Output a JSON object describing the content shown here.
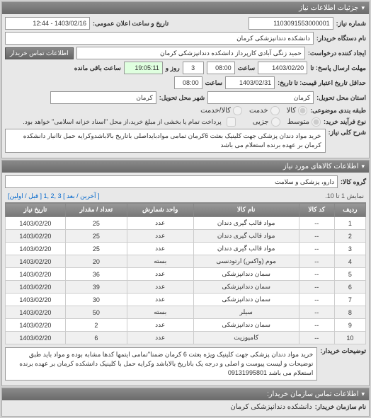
{
  "panel1": {
    "title": "جزئیات اطلاعات نیاز",
    "request_no_label": "شماره نیاز:",
    "request_no": "1103091553000001",
    "announce_label": "تاریخ و ساعت اعلان عمومی:",
    "announce_value": "1403/02/16 - 12:44",
    "buyer_device_label": "نام دستگاه خریدار:",
    "buyer_device": "دانشکده دندانپزشکی کرمان",
    "requester_label": "ایجاد کننده درخواست:",
    "requester": "حمید زنگی آبادی کارپرداز دانشکده دندانپزشکی کرمان",
    "contact_btn": "اطلاعات تماس خریدار",
    "deadline_send_label": "مهلت ارسال پاسخ: تا",
    "deadline_date": "1403/02/20",
    "time_label": "ساعت",
    "deadline_time": "08:00",
    "remain_days": "3",
    "remain_day_label": "روز و",
    "remain_time": "19:05:11",
    "remain_label2": "ساعت باقی مانده",
    "validity_label": "حداقل تاریخ اعتبار قیمت: تا تاریخ:",
    "validity_date": "1403/02/31",
    "validity_time": "08:00",
    "delivery_state_label": "استان محل تحویل:",
    "delivery_state": "کرمان",
    "delivery_city_label": "شهر محل تحویل:",
    "delivery_city": "کرمان",
    "budget_row_label": "طبقه بندی موضوعی:",
    "buy_type_label": "نوع فرآیند خرید:",
    "radios": {
      "goods": "کالا",
      "service": "خدمت",
      "both": "کالا/خدمت",
      "medium": "متوسط",
      "small": "جزیی"
    },
    "payment_checkbox": "پرداخت تمام یا بخشی از مبلغ خرید،از محل \"اسناد خزانه اسلامی\" خواهد بود.",
    "desc_label": "شرح کلی نیاز:",
    "desc": "خرید مواد دندان پزشکی جهت کلینیک بعثت 6کرمان تمامی موادبایداصلی باتاریخ بالاباشدوکرایه حمل تاانبار دانشکده کرمان بر عهده برنده استعلام می باشد"
  },
  "panel2": {
    "title": "اطلاعات کالاهای مورد نیاز",
    "group_label": "گروه کالا:",
    "group_value": "دارو، پزشکی و سلامت",
    "pagination_text": "نمایش 1 تا 10.",
    "page_links": [
      "[ آخرین / بعد ] 3 ,2 ,1 [ قبل / اولین]"
    ],
    "columns": [
      "ردیف",
      "کد کالا",
      "نام کالا",
      "واحد شمارش",
      "تعداد / مقدار",
      "تاریخ نیاز"
    ],
    "rows": [
      [
        "1",
        "--",
        "مواد قالب گیری دندان",
        "عدد",
        "25",
        "1403/02/20"
      ],
      [
        "2",
        "--",
        "مواد قالب گیری دندان",
        "عدد",
        "25",
        "1403/02/20"
      ],
      [
        "3",
        "--",
        "مواد قالب گیری دندان",
        "عدد",
        "25",
        "1403/02/20"
      ],
      [
        "4",
        "--",
        "موم (واکس) ارتودنسی",
        "بسته",
        "20",
        "1403/02/20"
      ],
      [
        "5",
        "--",
        "سمان دندانپزشکی",
        "عدد",
        "36",
        "1403/02/20"
      ],
      [
        "6",
        "--",
        "سمان دندانپزشکی",
        "عدد",
        "39",
        "1403/02/20"
      ],
      [
        "7",
        "--",
        "سمان دندانپزشکی",
        "عدد",
        "30",
        "1403/02/20"
      ],
      [
        "8",
        "--",
        "سیلر",
        "بسته",
        "50",
        "1403/02/20"
      ],
      [
        "9",
        "--",
        "سمان دندانپزشکی",
        "عدد",
        "2",
        "1403/02/20"
      ],
      [
        "10",
        "--",
        "کامپوزیت",
        "عدد",
        "6",
        "1403/02/20"
      ]
    ],
    "notes_label": "توضیحات خریدار:",
    "notes": "خرید مواد دندان پزشکی جهت کلینیک ویژه بعثت 6 کرمان ضمنا\"تمامی ایتمها کدها مشابه بوده و مواد باید طبق توضیحات و لیست پیوست و اصلی و درجه یک باتاریخ بالاباشد وکرایه حمل با کلینیک دانشکده کرمان بر عهده برنده استعلام می باشد 09131995801"
  },
  "panel3": {
    "title": "اطلاعات تماس سازمان خریدار:",
    "org_label": "نام سازمان خریدار:",
    "org_value": "دانشکده دندانپزشکی کرمان"
  }
}
